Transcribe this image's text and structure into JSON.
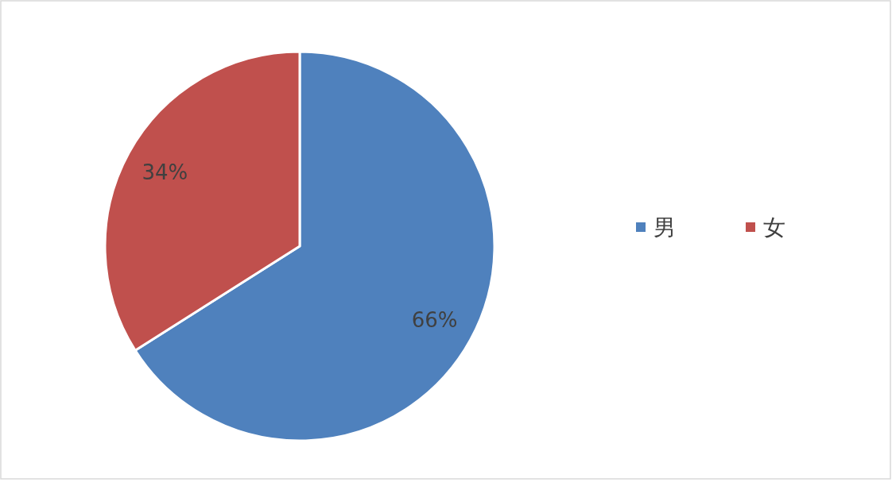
{
  "chart_data": {
    "type": "pie",
    "categories": [
      "男",
      "女"
    ],
    "values": [
      66,
      34
    ],
    "colors": [
      "#4f81bd",
      "#c0504d"
    ],
    "value_labels": [
      "66%",
      "34%"
    ],
    "legend": "right"
  }
}
